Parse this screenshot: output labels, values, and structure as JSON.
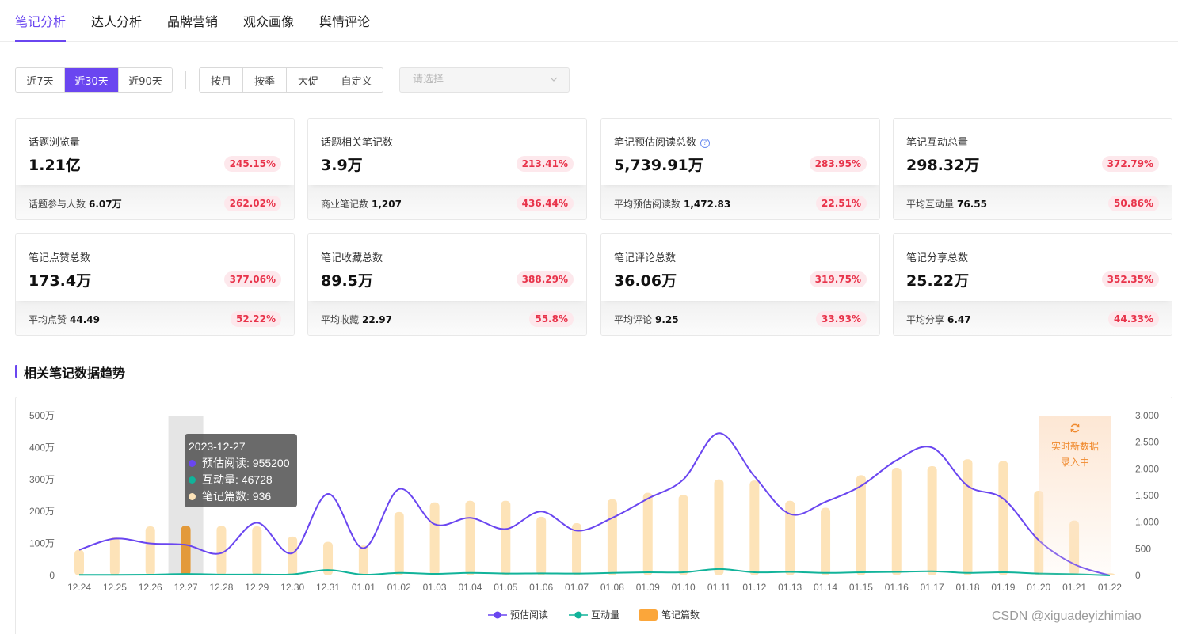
{
  "tabs": [
    "笔记分析",
    "达人分析",
    "品牌营销",
    "观众画像",
    "舆情评论"
  ],
  "active_tab": 0,
  "filters": {
    "range_buttons": [
      "近7天",
      "近30天",
      "近90天"
    ],
    "range_active": 1,
    "period_buttons": [
      "按月",
      "按季",
      "大促",
      "自定义"
    ],
    "select_placeholder": "请选择"
  },
  "cards": [
    {
      "label": "话题浏览量",
      "value": "1.21亿",
      "change": "245.15%",
      "sub_label": "话题参与人数",
      "sub_value": "6.07万",
      "sub_change": "262.02%",
      "help": false
    },
    {
      "label": "话题相关笔记数",
      "value": "3.9万",
      "change": "213.41%",
      "sub_label": "商业笔记数",
      "sub_value": "1,207",
      "sub_change": "436.44%",
      "help": false
    },
    {
      "label": "笔记预估阅读总数",
      "value": "5,739.91万",
      "change": "283.95%",
      "sub_label": "平均预估阅读数",
      "sub_value": "1,472.83",
      "sub_change": "22.51%",
      "help": true
    },
    {
      "label": "笔记互动总量",
      "value": "298.32万",
      "change": "372.79%",
      "sub_label": "平均互动量",
      "sub_value": "76.55",
      "sub_change": "50.86%",
      "help": false
    },
    {
      "label": "笔记点赞总数",
      "value": "173.4万",
      "change": "377.06%",
      "sub_label": "平均点赞",
      "sub_value": "44.49",
      "sub_change": "52.22%",
      "help": false
    },
    {
      "label": "笔记收藏总数",
      "value": "89.5万",
      "change": "388.29%",
      "sub_label": "平均收藏",
      "sub_value": "22.97",
      "sub_change": "55.8%",
      "help": false
    },
    {
      "label": "笔记评论总数",
      "value": "36.06万",
      "change": "319.75%",
      "sub_label": "平均评论",
      "sub_value": "9.25",
      "sub_change": "33.93%",
      "help": false
    },
    {
      "label": "笔记分享总数",
      "value": "25.22万",
      "change": "352.35%",
      "sub_label": "平均分享",
      "sub_value": "6.47",
      "sub_change": "44.33%",
      "help": false
    }
  ],
  "section_title": "相关笔记数据趋势",
  "colors": {
    "accent": "#6a46f0",
    "read": "#6a46f0",
    "interact": "#11b39a",
    "notes": "#fde3b8",
    "notes_highlight": "#e39a3a",
    "realtime": "#f08a2e"
  },
  "chart_data": {
    "type": "line",
    "categories": [
      "12.24",
      "12.25",
      "12.26",
      "12.27",
      "12.28",
      "12.29",
      "12.30",
      "12.31",
      "01.01",
      "01.02",
      "01.03",
      "01.04",
      "01.05",
      "01.06",
      "01.07",
      "01.08",
      "01.09",
      "01.10",
      "01.11",
      "01.12",
      "01.13",
      "01.14",
      "01.15",
      "01.16",
      "01.17",
      "01.18",
      "01.19",
      "01.20",
      "01.21",
      "01.22"
    ],
    "y_left": {
      "ticks": [
        "0",
        "100万",
        "200万",
        "300万",
        "400万",
        "500万"
      ],
      "range": [
        0,
        5000000
      ]
    },
    "y_right": {
      "ticks": [
        "0",
        "500",
        "1,000",
        "1,500",
        "2,000",
        "2,500",
        "3,000"
      ],
      "range": [
        0,
        3000
      ]
    },
    "series": [
      {
        "name": "预估阅读",
        "axis": "left",
        "kind": "line",
        "values": [
          800000,
          1150000,
          1000000,
          955200,
          700000,
          1650000,
          700000,
          2550000,
          850000,
          2700000,
          1600000,
          1800000,
          1450000,
          2000000,
          1400000,
          1800000,
          2400000,
          3000000,
          4450000,
          3100000,
          1920000,
          2300000,
          2800000,
          3600000,
          4000000,
          2800000,
          2400000,
          1100000,
          350000,
          0
        ]
      },
      {
        "name": "互动量",
        "axis": "left",
        "kind": "line",
        "values": [
          20000,
          18000,
          25000,
          46728,
          28000,
          30000,
          35000,
          170000,
          25000,
          80000,
          50000,
          80000,
          60000,
          65000,
          60000,
          80000,
          100000,
          100000,
          200000,
          100000,
          110000,
          80000,
          100000,
          110000,
          130000,
          80000,
          100000,
          60000,
          40000,
          0
        ]
      },
      {
        "name": "笔记篇数",
        "axis": "right",
        "kind": "bar",
        "values": [
          480,
          720,
          920,
          936,
          930,
          920,
          730,
          630,
          560,
          1190,
          1370,
          1400,
          1400,
          1100,
          980,
          1430,
          1550,
          1510,
          1800,
          1780,
          1400,
          1270,
          1880,
          2020,
          2050,
          2180,
          2150,
          1590,
          1030,
          40
        ]
      }
    ],
    "highlight_index": 3,
    "legend_position": "bottom"
  },
  "tooltip": {
    "title": "2023-12-27",
    "rows": [
      {
        "label": "预估阅读",
        "value": "955200"
      },
      {
        "label": "互动量",
        "value": "46728"
      },
      {
        "label": "笔记篇数",
        "value": "936"
      }
    ]
  },
  "realtime_label": "实时新数据录入中",
  "watermark": "CSDN @xiguadeyizhimiao"
}
